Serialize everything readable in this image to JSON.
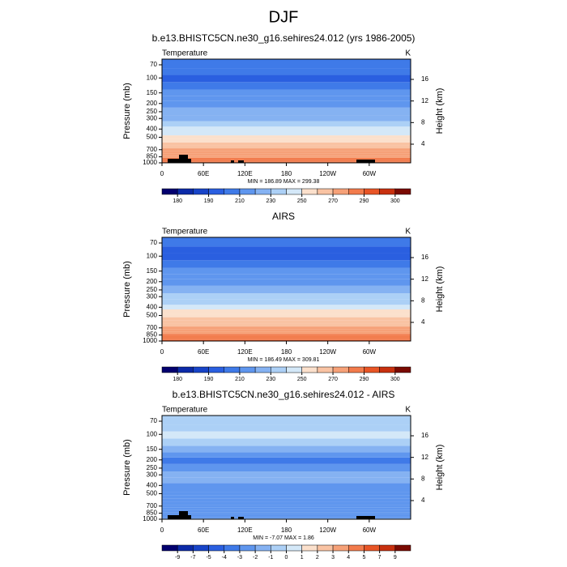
{
  "title": "DJF",
  "chart_data": [
    {
      "type": "contour",
      "title": "b.e13.BHISTC5CN.ne30_g16.sehires24.012 (yrs 1986-2005)",
      "left_label": "Temperature",
      "right_label": "K",
      "ylabel": "Pressure (mb)",
      "y2label": "Height (km)",
      "stats": "MIN = 186.89  MAX = 299.38",
      "ylim": [
        1000,
        60
      ],
      "log_y": true,
      "yticks": [
        70,
        100,
        150,
        200,
        250,
        300,
        400,
        500,
        700,
        850,
        1000
      ],
      "y2lim": [
        0.55,
        19.75
      ],
      "y2ticks": [
        4,
        8,
        12,
        16
      ],
      "xlim": [
        0,
        360
      ],
      "xticks": [
        0,
        {
          "value": 60,
          "label": "60E"
        },
        {
          "value": 120,
          "label": "120E"
        },
        180,
        {
          "value": 240,
          "label": "120W"
        },
        {
          "value": 300,
          "label": "60W"
        }
      ],
      "profile": {
        "pressure": [
          1000,
          950,
          900,
          850,
          800,
          750,
          700,
          650,
          600,
          550,
          500,
          450,
          400,
          350,
          300,
          250,
          200,
          175,
          150,
          125,
          100,
          85,
          70,
          60
        ],
        "values": [
          288,
          285,
          282,
          279,
          276,
          273,
          270,
          266,
          262,
          258,
          253,
          248,
          242,
          235,
          228,
          221,
          215,
          213,
          211,
          207,
          198,
          200,
          205,
          208
        ]
      },
      "colorbar": {
        "levels": [
          180,
          185,
          190,
          200,
          210,
          220,
          230,
          240,
          250,
          260,
          270,
          280,
          290,
          295,
          300
        ],
        "ticks": [
          180,
          190,
          210,
          230,
          250,
          270,
          290,
          300
        ],
        "colors": [
          "#03006f",
          "#0c2aa8",
          "#1844c8",
          "#2a5fe0",
          "#3f7ae8",
          "#5f96ee",
          "#85b2f2",
          "#acd0f6",
          "#d4e8f8",
          "#fbe0cc",
          "#f9c3a3",
          "#f6a178",
          "#f27b4c",
          "#e85526",
          "#c8300f",
          "#7a0a02"
        ]
      }
    },
    {
      "type": "contour",
      "title": "AIRS",
      "left_label": "Temperature",
      "right_label": "K",
      "ylabel": "Pressure (mb)",
      "y2label": "Height (km)",
      "stats": "MIN = 186.49  MAX = 309.81",
      "ylim": [
        1000,
        60
      ],
      "log_y": true,
      "yticks": [
        70,
        100,
        150,
        200,
        250,
        300,
        400,
        500,
        700,
        850,
        1000
      ],
      "y2lim": [
        0.55,
        19.75
      ],
      "y2ticks": [
        4,
        8,
        12,
        16
      ],
      "xlim": [
        0,
        360
      ],
      "xticks": [
        0,
        {
          "value": 60,
          "label": "60E"
        },
        {
          "value": 120,
          "label": "120E"
        },
        180,
        {
          "value": 240,
          "label": "120W"
        },
        {
          "value": 300,
          "label": "60W"
        }
      ],
      "profile": {
        "pressure": [
          1000,
          950,
          900,
          850,
          800,
          750,
          700,
          650,
          600,
          550,
          500,
          450,
          400,
          350,
          300,
          250,
          200,
          175,
          150,
          125,
          100,
          85,
          70,
          60
        ],
        "values": [
          291,
          287,
          284,
          281,
          278,
          275,
          272,
          268,
          264,
          260,
          255,
          250,
          244,
          237,
          230,
          223,
          217,
          214,
          211,
          206,
          197,
          199,
          204,
          207
        ]
      },
      "colorbar": {
        "levels": [
          180,
          185,
          190,
          200,
          210,
          220,
          230,
          240,
          250,
          260,
          270,
          280,
          290,
          295,
          300
        ],
        "ticks": [
          180,
          190,
          210,
          230,
          250,
          270,
          290,
          300
        ],
        "colors": [
          "#03006f",
          "#0c2aa8",
          "#1844c8",
          "#2a5fe0",
          "#3f7ae8",
          "#5f96ee",
          "#85b2f2",
          "#acd0f6",
          "#d4e8f8",
          "#fbe0cc",
          "#f9c3a3",
          "#f6a178",
          "#f27b4c",
          "#e85526",
          "#c8300f",
          "#7a0a02"
        ]
      }
    },
    {
      "type": "contour",
      "title": "b.e13.BHISTC5CN.ne30_g16.sehires24.012 - AIRS",
      "left_label": "Temperature",
      "right_label": "K",
      "ylabel": "Pressure (mb)",
      "y2label": "Height (km)",
      "stats": "MIN =  -7.07  MAX =   1.86",
      "ylim": [
        1000,
        60
      ],
      "log_y": true,
      "yticks": [
        70,
        100,
        150,
        200,
        250,
        300,
        400,
        500,
        700,
        850,
        1000
      ],
      "y2lim": [
        0.55,
        19.75
      ],
      "y2ticks": [
        4,
        8,
        12,
        16
      ],
      "xlim": [
        0,
        360
      ],
      "xticks": [
        0,
        {
          "value": 60,
          "label": "60E"
        },
        {
          "value": 120,
          "label": "120E"
        },
        180,
        {
          "value": 240,
          "label": "120W"
        },
        {
          "value": 300,
          "label": "60W"
        }
      ],
      "profile": {
        "pressure": [
          1000,
          950,
          900,
          850,
          800,
          750,
          700,
          650,
          600,
          550,
          500,
          450,
          400,
          350,
          300,
          250,
          200,
          175,
          150,
          125,
          100,
          85,
          70,
          60
        ],
        "values": [
          -1.5,
          -2.5,
          -2.5,
          -2.5,
          -2.5,
          -2.5,
          -2.5,
          -2.5,
          -2.5,
          -2.5,
          -2.5,
          -2.5,
          -2.5,
          -1.5,
          -1.5,
          -2.5,
          -3.5,
          -2.5,
          -1.5,
          -0.5,
          0.5,
          -0.5,
          -0.5,
          -0.5
        ]
      },
      "colorbar": {
        "levels": [
          -9,
          -7,
          -5,
          -4,
          -3,
          -2,
          -1,
          0,
          1,
          2,
          3,
          4,
          5,
          7,
          9
        ],
        "ticks": [
          -9,
          -7,
          -5,
          -4,
          -3,
          -2,
          -1,
          0,
          1,
          2,
          3,
          4,
          5,
          7,
          9
        ],
        "colors": [
          "#03006f",
          "#0c2aa8",
          "#1844c8",
          "#2a5fe0",
          "#3f7ae8",
          "#5f96ee",
          "#85b2f2",
          "#acd0f6",
          "#d4e8f8",
          "#fbe0cc",
          "#f9c3a3",
          "#f6a178",
          "#f27b4c",
          "#e85526",
          "#c8300f",
          "#7a0a02"
        ]
      }
    }
  ]
}
